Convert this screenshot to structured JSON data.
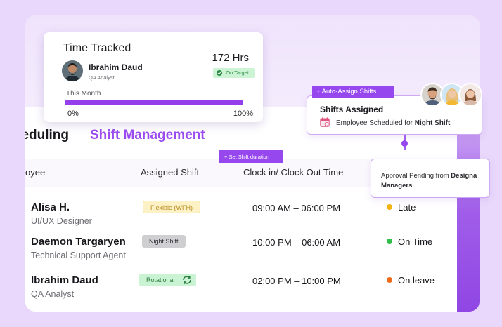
{
  "nav": {
    "tab_scheduling": "eduling",
    "tab_shift_management": "Shift Management"
  },
  "table": {
    "headers": {
      "employee": "oyee",
      "assigned_shift": "Assigned Shift",
      "clock": "Clock in/ Clock Out Time"
    },
    "rows": [
      {
        "name": "Alisa H.",
        "role": "UI/UX Designer",
        "shift": "Flexible (WFH)",
        "time": "09:00 AM – 06:00 PM",
        "status": "Late",
        "status_color": "#f2b413"
      },
      {
        "name": "Daemon Targaryen",
        "role": "Technical Support Agent",
        "shift": "Night Shift",
        "time": "10:00 PM – 06:00 AM",
        "status": "On Time",
        "status_color": "#2fbf4a"
      },
      {
        "name": "Ibrahim Daud",
        "role": "QA Analyst",
        "shift": "Rotational",
        "time": "02:00 PM – 10:00 PM",
        "status": "On leave",
        "status_color": "#f06a1a"
      }
    ]
  },
  "time_tracked": {
    "title": "Time Tracked",
    "hours": "172 Hrs",
    "employee_name": "Ibrahim Daud",
    "employee_role": "QA Analyst",
    "status_badge": "On Target",
    "period": "This Month",
    "progress_fraction": 1.0,
    "min_label": "0%",
    "max_label": "100%"
  },
  "auto_assign": {
    "label": "+ Auto-Assign Shifts"
  },
  "shifts_assigned": {
    "title": "Shifts Assigned",
    "text_prefix": "Employee Scheduled for ",
    "text_bold": "Night Shift"
  },
  "approval": {
    "text_prefix": "Approval Pending from ",
    "text_bold_1": "Designa",
    "text_bold_2": "Managers"
  },
  "set_shift": {
    "label": "+ Set Shift duration"
  },
  "colors": {
    "accent": "#9747ee",
    "on_target": "#2b8a45"
  }
}
